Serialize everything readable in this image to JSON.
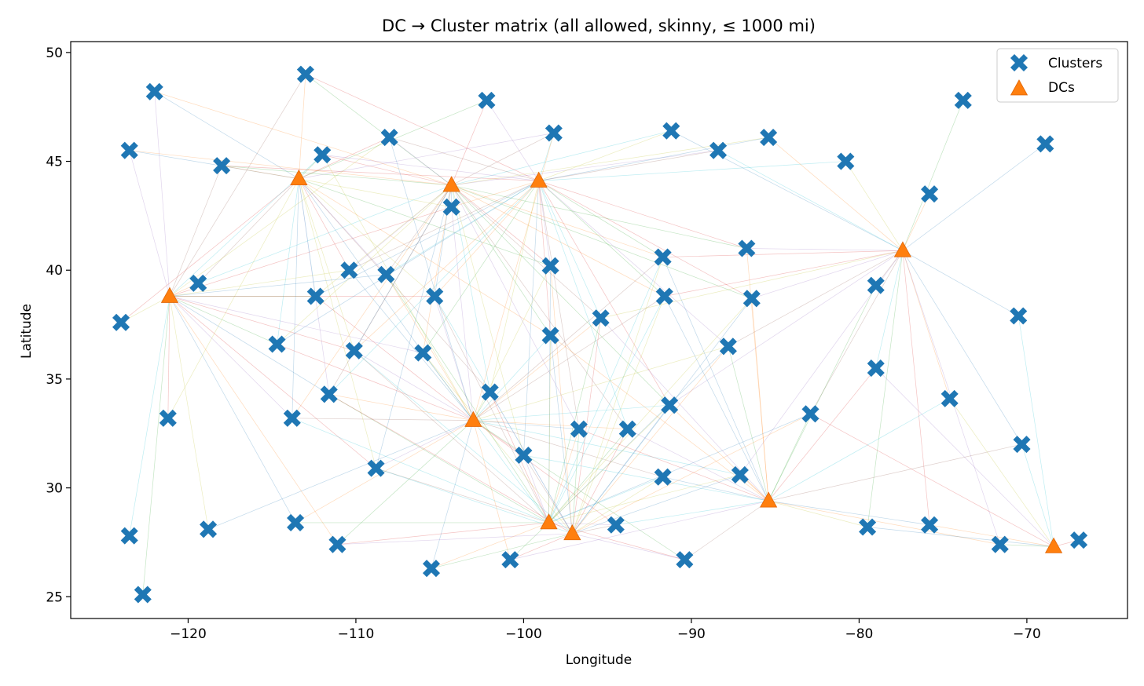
{
  "chart_data": {
    "type": "scatter",
    "title": "DC → Cluster matrix (all allowed, skinny, ≤ 1000 mi)",
    "xlabel": "Longitude",
    "ylabel": "Latitude",
    "xlim": [
      -127,
      -64
    ],
    "ylim": [
      24,
      50.5
    ],
    "xticks": [
      -120,
      -110,
      -100,
      -90,
      -80,
      -70
    ],
    "xtick_labels": [
      "−120",
      "−110",
      "−100",
      "−90",
      "−80",
      "−70"
    ],
    "yticks": [
      25,
      30,
      35,
      40,
      45,
      50
    ],
    "ytick_labels": [
      "25",
      "30",
      "35",
      "40",
      "45",
      "50"
    ],
    "grid": false,
    "legend_position": "top-right",
    "max_distance_mi": 1000,
    "colors": {
      "clusters": "#1f77b4",
      "dcs": "#ff7f0e",
      "line_palette": [
        "#1f77b4",
        "#ff7f0e",
        "#2ca02c",
        "#d62728",
        "#9467bd",
        "#8c564b",
        "#17becf",
        "#bcbd22"
      ]
    },
    "series": [
      {
        "name": "Clusters",
        "marker": "x-filled",
        "points": [
          [
            -122.0,
            48.2
          ],
          [
            -113.0,
            49.0
          ],
          [
            -102.2,
            47.8
          ],
          [
            -108.0,
            46.1
          ],
          [
            -98.2,
            46.3
          ],
          [
            -91.2,
            46.4
          ],
          [
            -85.4,
            46.1
          ],
          [
            -73.8,
            47.8
          ],
          [
            -123.5,
            45.5
          ],
          [
            -118.0,
            44.8
          ],
          [
            -112.0,
            45.3
          ],
          [
            -88.4,
            45.5
          ],
          [
            -80.8,
            45.0
          ],
          [
            -68.9,
            45.8
          ],
          [
            -75.8,
            43.5
          ],
          [
            -104.3,
            42.9
          ],
          [
            -91.7,
            40.6
          ],
          [
            -86.7,
            41.0
          ],
          [
            -98.4,
            40.2
          ],
          [
            -110.4,
            40.0
          ],
          [
            -108.2,
            39.8
          ],
          [
            -119.4,
            39.4
          ],
          [
            -112.4,
            38.8
          ],
          [
            -105.3,
            38.8
          ],
          [
            -91.6,
            38.8
          ],
          [
            -86.4,
            38.7
          ],
          [
            -79.0,
            39.3
          ],
          [
            -124.0,
            37.6
          ],
          [
            -95.4,
            37.8
          ],
          [
            -70.5,
            37.9
          ],
          [
            -114.7,
            36.6
          ],
          [
            -110.1,
            36.3
          ],
          [
            -106.0,
            36.2
          ],
          [
            -98.4,
            37.0
          ],
          [
            -87.8,
            36.5
          ],
          [
            -79.0,
            35.5
          ],
          [
            -111.6,
            34.3
          ],
          [
            -102.0,
            34.4
          ],
          [
            -74.6,
            34.1
          ],
          [
            -121.2,
            33.2
          ],
          [
            -113.8,
            33.2
          ],
          [
            -91.3,
            33.8
          ],
          [
            -82.9,
            33.4
          ],
          [
            -96.7,
            32.7
          ],
          [
            -93.8,
            32.7
          ],
          [
            -70.3,
            32.0
          ],
          [
            -100.0,
            31.5
          ],
          [
            -108.8,
            30.9
          ],
          [
            -91.7,
            30.5
          ],
          [
            -87.1,
            30.6
          ],
          [
            -123.5,
            27.8
          ],
          [
            -118.8,
            28.1
          ],
          [
            -113.6,
            28.4
          ],
          [
            -111.1,
            27.4
          ],
          [
            -94.5,
            28.3
          ],
          [
            -79.5,
            28.2
          ],
          [
            -75.8,
            28.3
          ],
          [
            -71.6,
            27.4
          ],
          [
            -66.9,
            27.6
          ],
          [
            -105.5,
            26.3
          ],
          [
            -100.8,
            26.7
          ],
          [
            -90.4,
            26.7
          ],
          [
            -122.7,
            25.1
          ]
        ]
      },
      {
        "name": "DCs",
        "marker": "triangle-up",
        "points": [
          [
            -113.4,
            44.2
          ],
          [
            -104.3,
            43.9
          ],
          [
            -99.1,
            44.1
          ],
          [
            -77.4,
            40.9
          ],
          [
            -121.1,
            38.8
          ],
          [
            -103.0,
            33.1
          ],
          [
            -98.5,
            28.4
          ],
          [
            -97.1,
            27.9
          ],
          [
            -85.4,
            29.4
          ],
          [
            -68.4,
            27.3
          ]
        ]
      }
    ]
  }
}
